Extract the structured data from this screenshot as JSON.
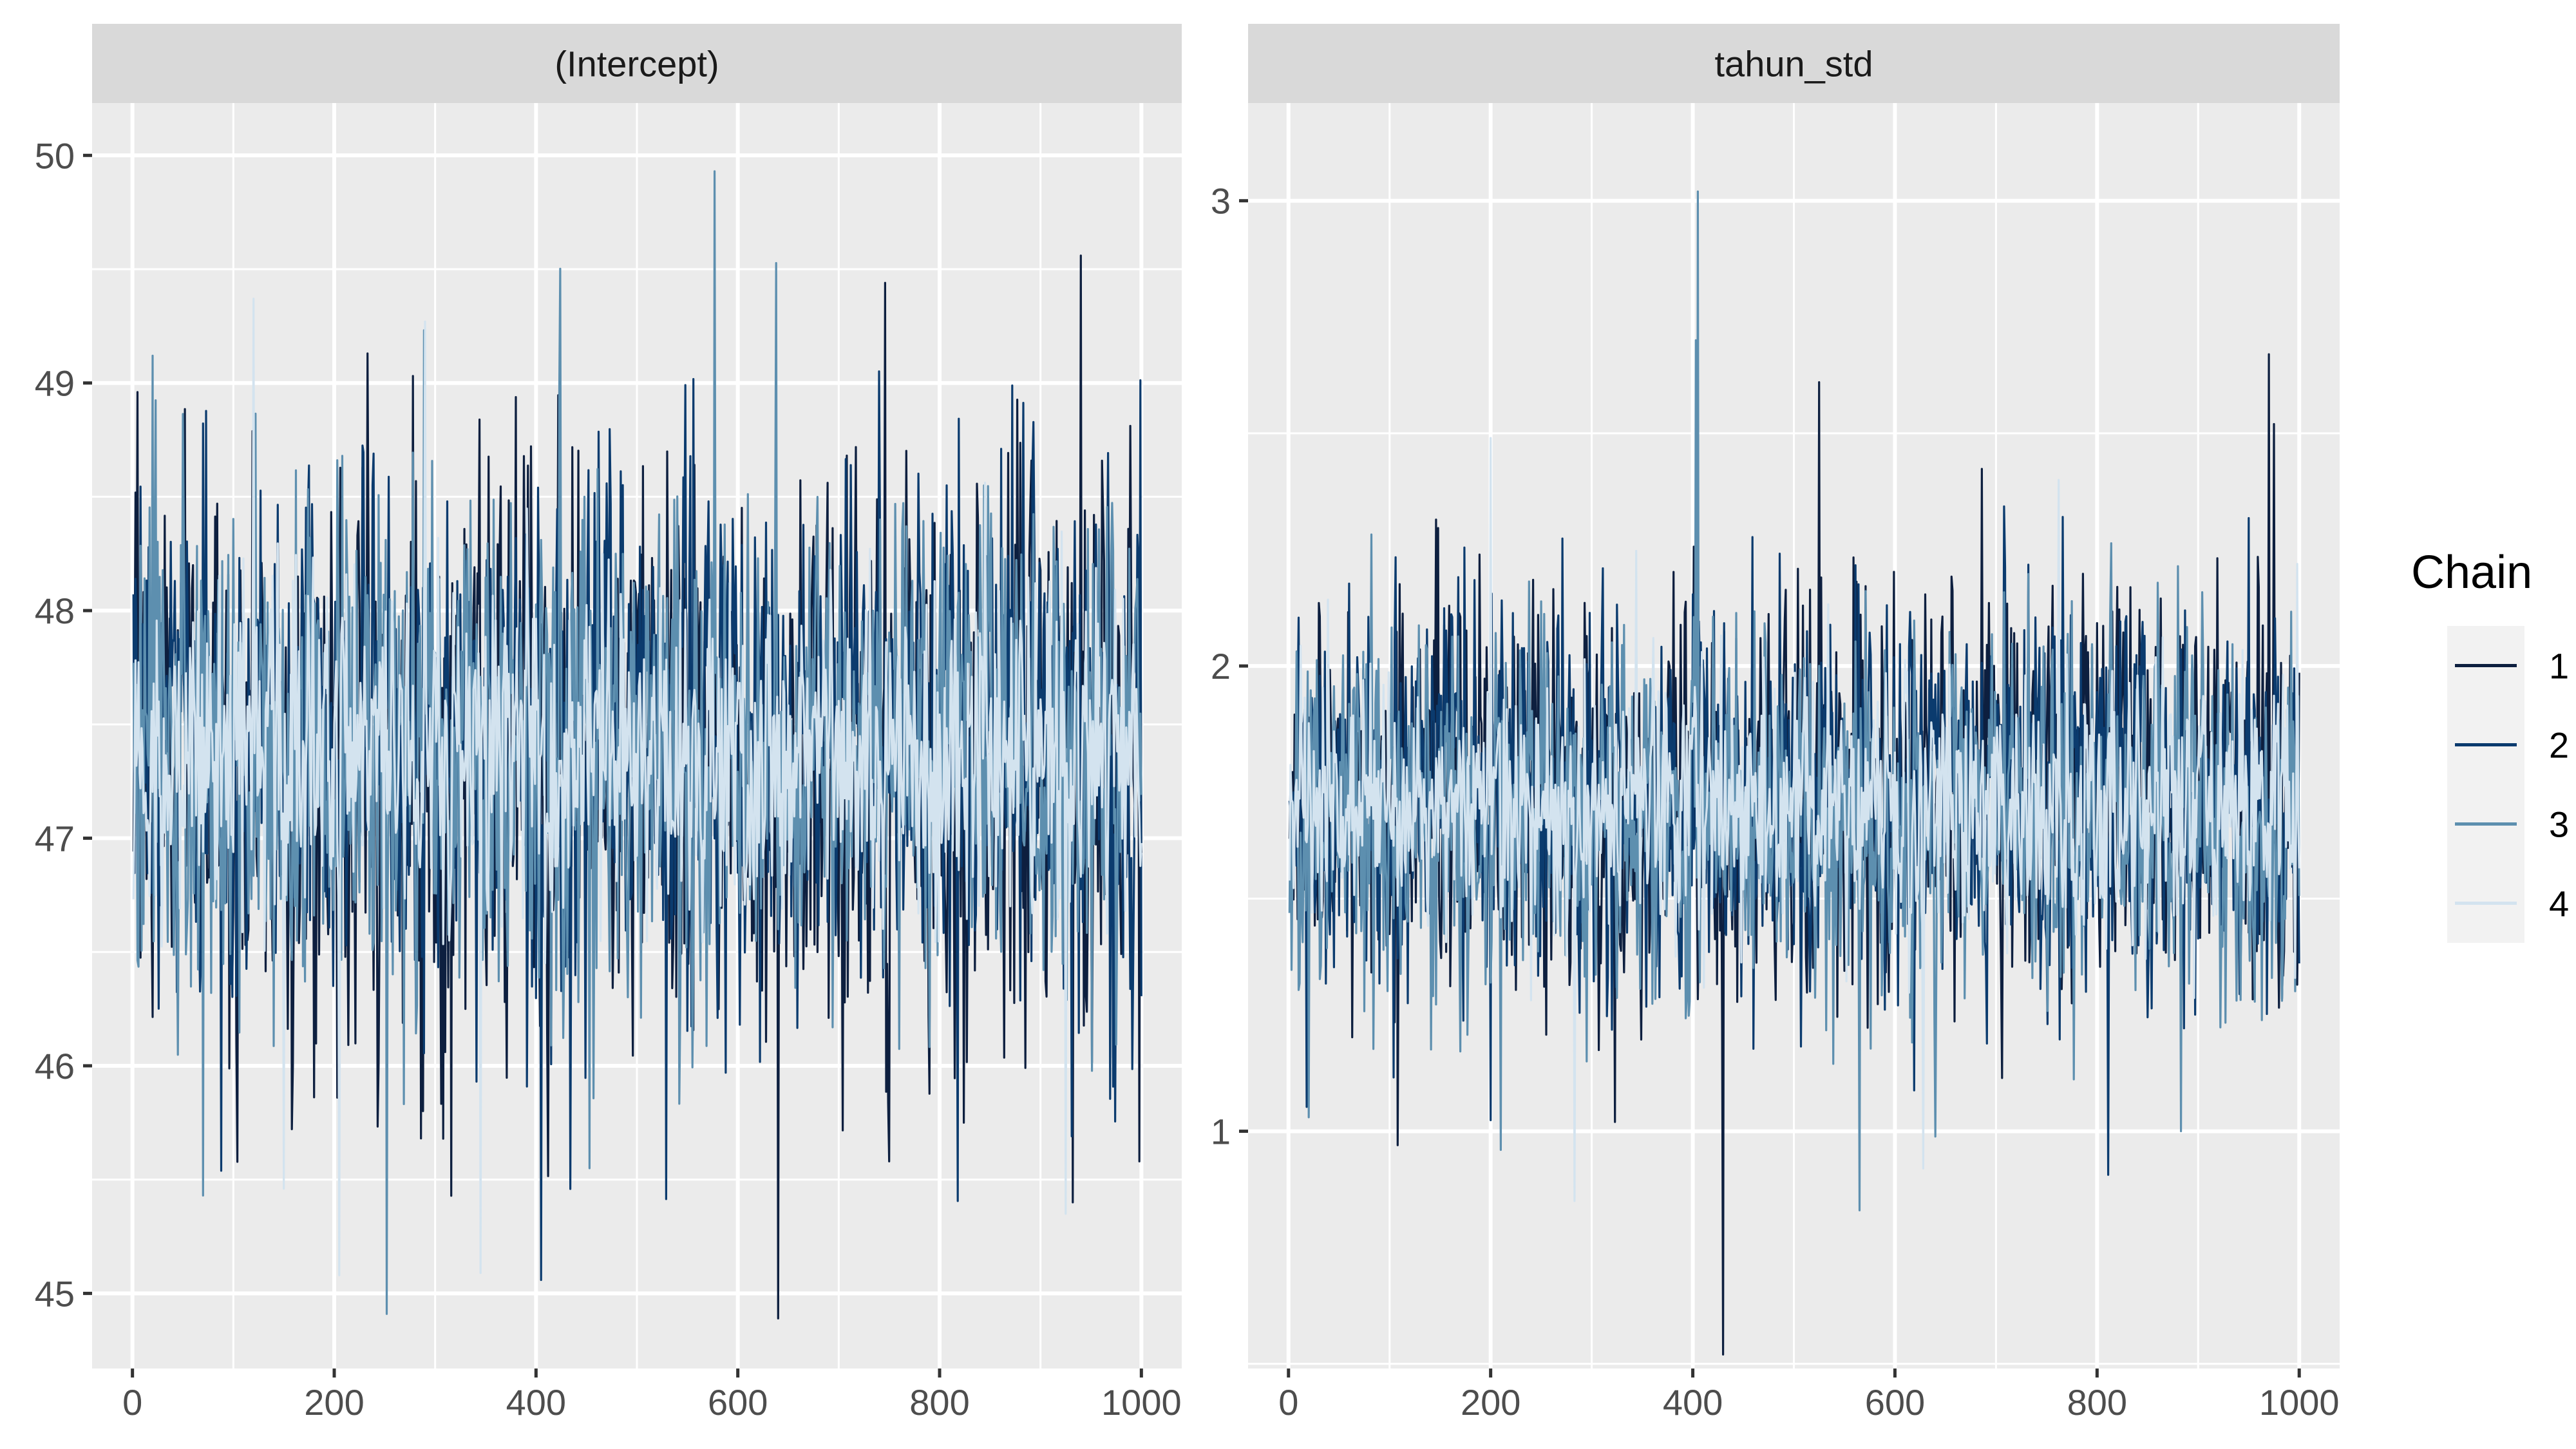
{
  "chart_data": {
    "type": "line",
    "title": "",
    "iterations": [
      1,
      1000
    ],
    "legend": {
      "title": "Chain",
      "entries": [
        "1",
        "2",
        "3",
        "4"
      ],
      "colors": [
        "#0d1f3f",
        "#0b3b6e",
        "#5d8faf",
        "#d3e3ef"
      ],
      "placement": "right"
    },
    "panels": [
      {
        "name": "(Intercept)",
        "xlabel": "",
        "ylabel": "",
        "xlim": [
          -40,
          1040
        ],
        "ylim": [
          44.67,
          50.23
        ],
        "xticks": [
          0,
          200,
          400,
          600,
          800,
          1000
        ],
        "xtick_labels": [
          "0",
          "200",
          "400",
          "600",
          "800",
          "1000"
        ],
        "yticks": [
          45,
          46,
          47,
          48,
          49,
          50
        ],
        "ytick_labels": [
          "45",
          "46",
          "47",
          "48",
          "49",
          "50"
        ],
        "series": [
          {
            "chain": "1",
            "center": 47.35,
            "sd": 0.62,
            "rho": 0.05
          },
          {
            "chain": "2",
            "center": 47.42,
            "sd": 0.58,
            "rho": 0.05
          },
          {
            "chain": "3",
            "center": 47.4,
            "sd": 0.55,
            "rho": 0.05
          },
          {
            "chain": "4",
            "center": 47.38,
            "sd": 0.35,
            "rho": 0.05
          }
        ],
        "notable_points": [
          {
            "chain": "3",
            "iter": 577,
            "value": 49.93
          },
          {
            "chain": "1",
            "iter": 640,
            "value": 44.89
          },
          {
            "chain": "3",
            "iter": 252,
            "value": 44.91
          },
          {
            "chain": "1",
            "iter": 940,
            "value": 49.56
          },
          {
            "chain": "1",
            "iter": 746,
            "value": 49.44
          },
          {
            "chain": "4",
            "iter": 120,
            "value": 49.37
          },
          {
            "chain": "4",
            "iter": 290,
            "value": 49.27
          },
          {
            "chain": "1",
            "iter": 233,
            "value": 49.13
          },
          {
            "chain": "3",
            "iter": 20,
            "value": 49.12
          },
          {
            "chain": "1",
            "iter": 5,
            "value": 48.96
          },
          {
            "chain": "3",
            "iter": 70,
            "value": 45.43
          },
          {
            "chain": "4",
            "iter": 205,
            "value": 45.08
          },
          {
            "chain": "4",
            "iter": 345,
            "value": 45.09
          },
          {
            "chain": "4",
            "iter": 925,
            "value": 45.35
          },
          {
            "chain": "1",
            "iter": 932,
            "value": 45.4
          },
          {
            "chain": "1",
            "iter": 998,
            "value": 45.58
          },
          {
            "chain": "1",
            "iter": 750,
            "value": 45.58
          },
          {
            "chain": "3",
            "iter": 453,
            "value": 45.55
          },
          {
            "chain": "4",
            "iter": 150,
            "value": 45.46
          }
        ]
      },
      {
        "name": "tahun_std",
        "xlabel": "",
        "ylabel": "",
        "xlim": [
          -40,
          1040
        ],
        "ylim": [
          0.49,
          3.21
        ],
        "xticks": [
          0,
          200,
          400,
          600,
          800,
          1000
        ],
        "xtick_labels": [
          "0",
          "200",
          "400",
          "600",
          "800",
          "1000"
        ],
        "yticks": [
          1,
          2,
          3
        ],
        "ytick_labels": [
          "1",
          "2",
          "3"
        ],
        "series": [
          {
            "chain": "1",
            "center": 1.72,
            "sd": 0.22,
            "rho": 0.05
          },
          {
            "chain": "2",
            "center": 1.7,
            "sd": 0.21,
            "rho": 0.05
          },
          {
            "chain": "3",
            "center": 1.68,
            "sd": 0.2,
            "rho": 0.05
          },
          {
            "chain": "4",
            "center": 1.7,
            "sd": 0.13,
            "rho": 0.05
          }
        ],
        "notable_points": [
          {
            "chain": "3",
            "iter": 405,
            "value": 3.02
          },
          {
            "chain": "3",
            "iter": 403,
            "value": 2.7
          },
          {
            "chain": "1",
            "iter": 430,
            "value": 0.52
          },
          {
            "chain": "1",
            "iter": 970,
            "value": 2.67
          },
          {
            "chain": "1",
            "iter": 975,
            "value": 2.52
          },
          {
            "chain": "1",
            "iter": 525,
            "value": 2.61
          },
          {
            "chain": "3",
            "iter": 565,
            "value": 0.83
          },
          {
            "chain": "4",
            "iter": 283,
            "value": 0.85
          },
          {
            "chain": "4",
            "iter": 628,
            "value": 0.92
          },
          {
            "chain": "1",
            "iter": 108,
            "value": 0.97
          },
          {
            "chain": "3",
            "iter": 210,
            "value": 0.96
          },
          {
            "chain": "1",
            "iter": 323,
            "value": 1.02
          },
          {
            "chain": "3",
            "iter": 20,
            "value": 1.03
          },
          {
            "chain": "4",
            "iter": 200,
            "value": 2.49
          },
          {
            "chain": "4",
            "iter": 762,
            "value": 2.4
          }
        ]
      }
    ]
  }
}
